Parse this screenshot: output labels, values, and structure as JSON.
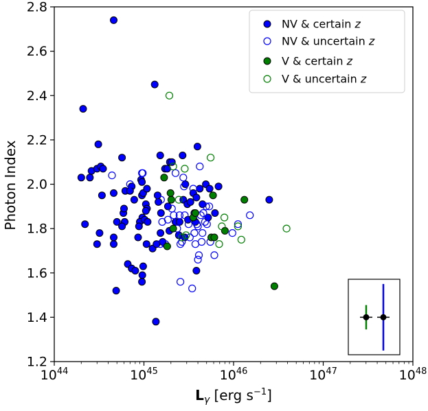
{
  "chart_data": {
    "type": "scatter",
    "xlabel": "L",
    "xlabel_sub": "γ",
    "xlabel_unit": " [erg s",
    "xlabel_exp": "−1",
    "xlabel_close": "]",
    "ylabel": "Photon Index",
    "x_scale": "log",
    "xlim": [
      1e+44,
      1e+48
    ],
    "ylim": [
      1.2,
      2.8
    ],
    "x_ticks": [
      {
        "value": 1e+44,
        "base": "10",
        "exp": "44"
      },
      {
        "value": 1e+45,
        "base": "10",
        "exp": "45"
      },
      {
        "value": 1e+46,
        "base": "10",
        "exp": "46"
      },
      {
        "value": 1e+47,
        "base": "10",
        "exp": "47"
      },
      {
        "value": 1e+48,
        "base": "10",
        "exp": "48"
      }
    ],
    "y_ticks": [
      "1.2",
      "1.4",
      "1.6",
      "1.8",
      "2.0",
      "2.2",
      "2.4",
      "2.6",
      "2.8"
    ],
    "grid": false,
    "legend_position": "top-right",
    "series": [
      {
        "name": "NV & certain ",
        "name_italic": "z",
        "color": "#0000ff",
        "filled": true,
        "points": [
          [
            2.1e+44,
            2.34
          ],
          [
            2e+44,
            2.03
          ],
          [
            2.5e+44,
            2.03
          ],
          [
            2.6e+44,
            2.06
          ],
          [
            3e+44,
            2.07
          ],
          [
            3.3e+44,
            2.08
          ],
          [
            3.5e+44,
            2.07
          ],
          [
            3.1e+44,
            2.18
          ],
          [
            3.4e+44,
            1.95
          ],
          [
            4.6e+44,
            2.74
          ],
          [
            5.7e+44,
            2.12
          ],
          [
            4.6e+44,
            1.96
          ],
          [
            5e+44,
            1.83
          ],
          [
            5.9e+44,
            1.87
          ],
          [
            6.1e+44,
            1.83
          ],
          [
            6e+44,
            1.89
          ],
          [
            5.7e+44,
            1.81
          ],
          [
            4.6e+44,
            1.73
          ],
          [
            4.6e+44,
            1.76
          ],
          [
            4.9e+44,
            1.52
          ],
          [
            3e+44,
            1.73
          ],
          [
            3.2e+44,
            1.78
          ],
          [
            2.2e+44,
            1.82
          ],
          [
            6.2e+44,
            1.97
          ],
          [
            7.3e+44,
            1.99
          ],
          [
            7e+44,
            1.97
          ],
          [
            7.8e+44,
            1.93
          ],
          [
            6.6e+44,
            1.64
          ],
          [
            7.3e+44,
            1.62
          ],
          [
            8e+44,
            1.61
          ],
          [
            8.6e+44,
            1.76
          ],
          [
            9.3e+44,
            2.02
          ],
          [
            9.5e+44,
            2.01
          ],
          [
            9.5e+44,
            1.95
          ],
          [
            9.8e+44,
            1.96
          ],
          [
            9.8e+44,
            1.84
          ],
          [
            9.6e+44,
            1.85
          ],
          [
            9e+44,
            1.83
          ],
          [
            8.8e+44,
            1.81
          ],
          [
            9.6e+44,
            1.59
          ],
          [
            9.8e+44,
            1.63
          ],
          [
            9.5e+44,
            1.56
          ],
          [
            1.08e+45,
            1.98
          ],
          [
            1.05e+45,
            1.91
          ],
          [
            1.08e+45,
            1.89
          ],
          [
            1.05e+45,
            1.88
          ],
          [
            1.02e+45,
            1.84
          ],
          [
            1.1e+45,
            1.83
          ],
          [
            1.07e+45,
            1.73
          ],
          [
            1.32e+45,
            2.45
          ],
          [
            1.36e+45,
            1.38
          ],
          [
            1.25e+45,
            1.71
          ],
          [
            1.38e+45,
            1.73
          ],
          [
            1.52e+45,
            2.13
          ],
          [
            1.42e+45,
            1.95
          ],
          [
            1.45e+45,
            1.92
          ],
          [
            1.55e+45,
            1.87
          ],
          [
            1.53e+45,
            1.78
          ],
          [
            1.62e+45,
            1.74
          ],
          [
            1.72e+45,
            2.07
          ],
          [
            1.82e+45,
            2.07
          ],
          [
            1.95e+45,
            2.1
          ],
          [
            2.05e+45,
            2.1
          ],
          [
            1.85e+45,
            1.9
          ],
          [
            1.92e+45,
            1.79
          ],
          [
            2.25e+45,
            1.83
          ],
          [
            2.45e+45,
            1.77
          ],
          [
            2.5e+45,
            1.83
          ],
          [
            2.7e+45,
            2.13
          ],
          [
            2.9e+45,
            2.0
          ],
          [
            2.75e+45,
            1.93
          ],
          [
            3.05e+45,
            1.91
          ],
          [
            3.1e+45,
            1.84
          ],
          [
            2.85e+45,
            1.76
          ],
          [
            3.3e+45,
            1.92
          ],
          [
            3.55e+45,
            1.96
          ],
          [
            3.85e+45,
            1.94
          ],
          [
            3.95e+45,
            2.17
          ],
          [
            3.65e+45,
            1.87
          ],
          [
            3.75e+45,
            1.83
          ],
          [
            3.85e+45,
            1.61
          ],
          [
            4.2e+45,
            1.98
          ],
          [
            4.5e+45,
            1.91
          ],
          [
            4.9e+45,
            2.0
          ],
          [
            5.4e+45,
            1.98
          ],
          [
            5.2e+45,
            1.85
          ],
          [
            6.8e+45,
            1.99
          ],
          [
            6.2e+45,
            1.87
          ],
          [
            2.5e+46,
            1.93
          ]
        ]
      },
      {
        "name": "NV & uncertain ",
        "name_italic": "z",
        "color": "#0000ff",
        "filled": false,
        "points": [
          [
            4.4e+44,
            2.04
          ],
          [
            7e+44,
            2.0
          ],
          [
            9.5e+44,
            2.05
          ],
          [
            9.7e+44,
            2.05
          ],
          [
            1.55e+45,
            1.93
          ],
          [
            1.6e+45,
            1.83
          ],
          [
            1.52e+45,
            1.73
          ],
          [
            1.73e+45,
            1.73
          ],
          [
            1.85e+45,
            1.84
          ],
          [
            2.05e+45,
            1.89
          ],
          [
            2.15e+45,
            1.86
          ],
          [
            2.25e+45,
            2.05
          ],
          [
            2.5e+45,
            1.86
          ],
          [
            2.35e+45,
            1.8
          ],
          [
            2.55e+45,
            1.73
          ],
          [
            2.65e+45,
            1.74
          ],
          [
            2.55e+45,
            1.56
          ],
          [
            2.75e+45,
            2.03
          ],
          [
            2.8e+45,
            1.99
          ],
          [
            2.85e+45,
            1.86
          ],
          [
            3.15e+45,
            1.82
          ],
          [
            3.25e+45,
            1.76
          ],
          [
            3.45e+45,
            1.53
          ],
          [
            3.55e+45,
            1.98
          ],
          [
            3.65e+45,
            1.78
          ],
          [
            3.75e+45,
            1.73
          ],
          [
            3.9e+45,
            1.82
          ],
          [
            4e+45,
            1.81
          ],
          [
            4.1e+45,
            1.68
          ],
          [
            4e+45,
            1.66
          ],
          [
            4.2e+45,
            2.08
          ],
          [
            4.3e+45,
            1.86
          ],
          [
            4.5e+45,
            1.78
          ],
          [
            4.4e+45,
            1.74
          ],
          [
            4.6e+45,
            1.87
          ],
          [
            4.8e+45,
            1.83
          ],
          [
            4.95e+45,
            1.9
          ],
          [
            5.35e+45,
            1.9
          ],
          [
            5.05e+45,
            1.82
          ],
          [
            5.5e+45,
            1.74
          ],
          [
            6.1e+45,
            1.68
          ],
          [
            9.7e+45,
            1.78
          ],
          [
            1.12e+46,
            1.82
          ],
          [
            1.52e+46,
            1.86
          ]
        ]
      },
      {
        "name": "V & certain ",
        "name_italic": "z",
        "color": "#007f00",
        "filled": true,
        "points": [
          [
            1.68e+45,
            2.03
          ],
          [
            1.82e+45,
            1.72
          ],
          [
            1.98e+45,
            1.96
          ],
          [
            2.02e+45,
            1.93
          ],
          [
            2.12e+45,
            1.8
          ],
          [
            3.55e+45,
            1.85
          ],
          [
            3.75e+45,
            1.87
          ],
          [
            5.65e+45,
            1.76
          ],
          [
            5.9e+45,
            1.95
          ],
          [
            6.1e+45,
            1.76
          ],
          [
            8e+45,
            1.79
          ],
          [
            1.32e+46,
            1.93
          ],
          [
            2.85e+46,
            1.54
          ]
        ]
      },
      {
        "name": "V & uncertain ",
        "name_italic": "z",
        "color": "#007f00",
        "filled": false,
        "points": [
          [
            1.92e+45,
            2.4
          ],
          [
            2.12e+45,
            2.08
          ],
          [
            2.45e+45,
            1.93
          ],
          [
            2.65e+45,
            1.76
          ],
          [
            2.85e+45,
            2.07
          ],
          [
            2.95e+45,
            1.77
          ],
          [
            5.55e+45,
            2.12
          ],
          [
            6.9e+45,
            1.73
          ],
          [
            7.4e+45,
            1.81
          ],
          [
            7.9e+45,
            1.85
          ],
          [
            1.12e+46,
            1.81
          ],
          [
            1.22e+46,
            1.75
          ],
          [
            3.9e+46,
            1.8
          ]
        ]
      }
    ],
    "inset_errorbars": [
      {
        "color": "#007f00",
        "y": 1.4,
        "y_low": 1.345,
        "y_high": 1.455
      },
      {
        "color": "#0000ff",
        "y": 1.4,
        "y_low": 1.25,
        "y_high": 1.55
      }
    ]
  }
}
